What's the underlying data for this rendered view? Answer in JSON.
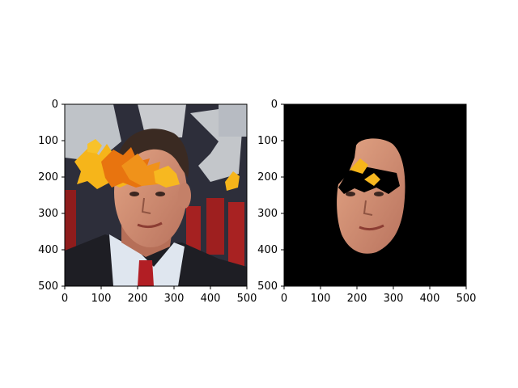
{
  "figure": {
    "panels": [
      {
        "id": "original",
        "description_role": "photo with leaf occlusions",
        "x_ticks": [
          "0",
          "100",
          "200",
          "300",
          "400",
          "500"
        ],
        "y_ticks": [
          "0",
          "100",
          "200",
          "300",
          "400",
          "500"
        ],
        "x_range": [
          0,
          500
        ],
        "y_range": [
          0,
          500
        ]
      },
      {
        "id": "masked",
        "description_role": "segmented face on black background",
        "x_ticks": [
          "0",
          "100",
          "200",
          "300",
          "400",
          "500"
        ],
        "y_ticks": [
          "0",
          "100",
          "200",
          "300",
          "400",
          "500"
        ],
        "x_range": [
          0,
          500
        ],
        "y_range": [
          0,
          500
        ]
      }
    ]
  },
  "colors": {
    "leaf_yellow": "#f6b51a",
    "leaf_orange": "#e8740f",
    "skin": "#d9957a",
    "suit": "#1e1e24",
    "shirt": "#dfe6ef",
    "tie": "#b21e24",
    "background_red": "#8f1c1c",
    "background_gray": "#bfc3c8",
    "mask_bg": "#000000"
  }
}
